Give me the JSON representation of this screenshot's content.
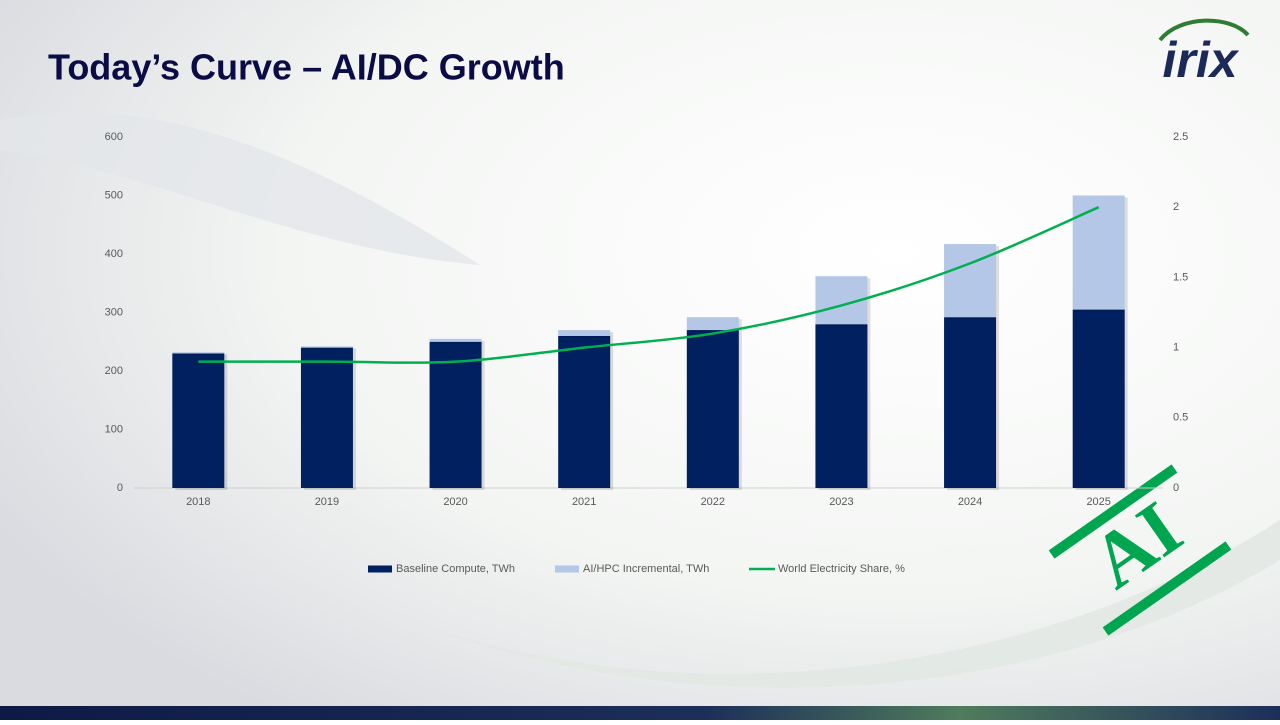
{
  "title": "Today’s Curve – AI/DC Growth",
  "logo": "irix",
  "stamp": "AI",
  "chart_data": {
    "type": "bar",
    "categories": [
      "2018",
      "2019",
      "2020",
      "2021",
      "2022",
      "2023",
      "2024",
      "2025"
    ],
    "series": [
      {
        "name": "Baseline Compute, TWh",
        "color": "#002060",
        "values": [
          230,
          240,
          250,
          260,
          270,
          280,
          292,
          305
        ]
      },
      {
        "name": "AI/HPC Incremental, TWh",
        "color": "#b4c7e7",
        "stacked": true,
        "values": [
          2,
          2,
          5,
          10,
          22,
          82,
          125,
          195
        ]
      },
      {
        "name": "World Electricity Share, %",
        "color": "#00b050",
        "type": "line",
        "axis": "y2",
        "values": [
          0.9,
          0.9,
          0.9,
          1.0,
          1.1,
          1.3,
          1.6,
          2.0
        ]
      }
    ],
    "ylim": [
      0,
      600
    ],
    "yticks": [
      0,
      100,
      200,
      300,
      400,
      500,
      600
    ],
    "y2lim": [
      0,
      2.5
    ],
    "y2ticks": [
      0,
      0.5,
      1,
      1.5,
      2,
      2.5
    ],
    "legend": "bottom"
  }
}
